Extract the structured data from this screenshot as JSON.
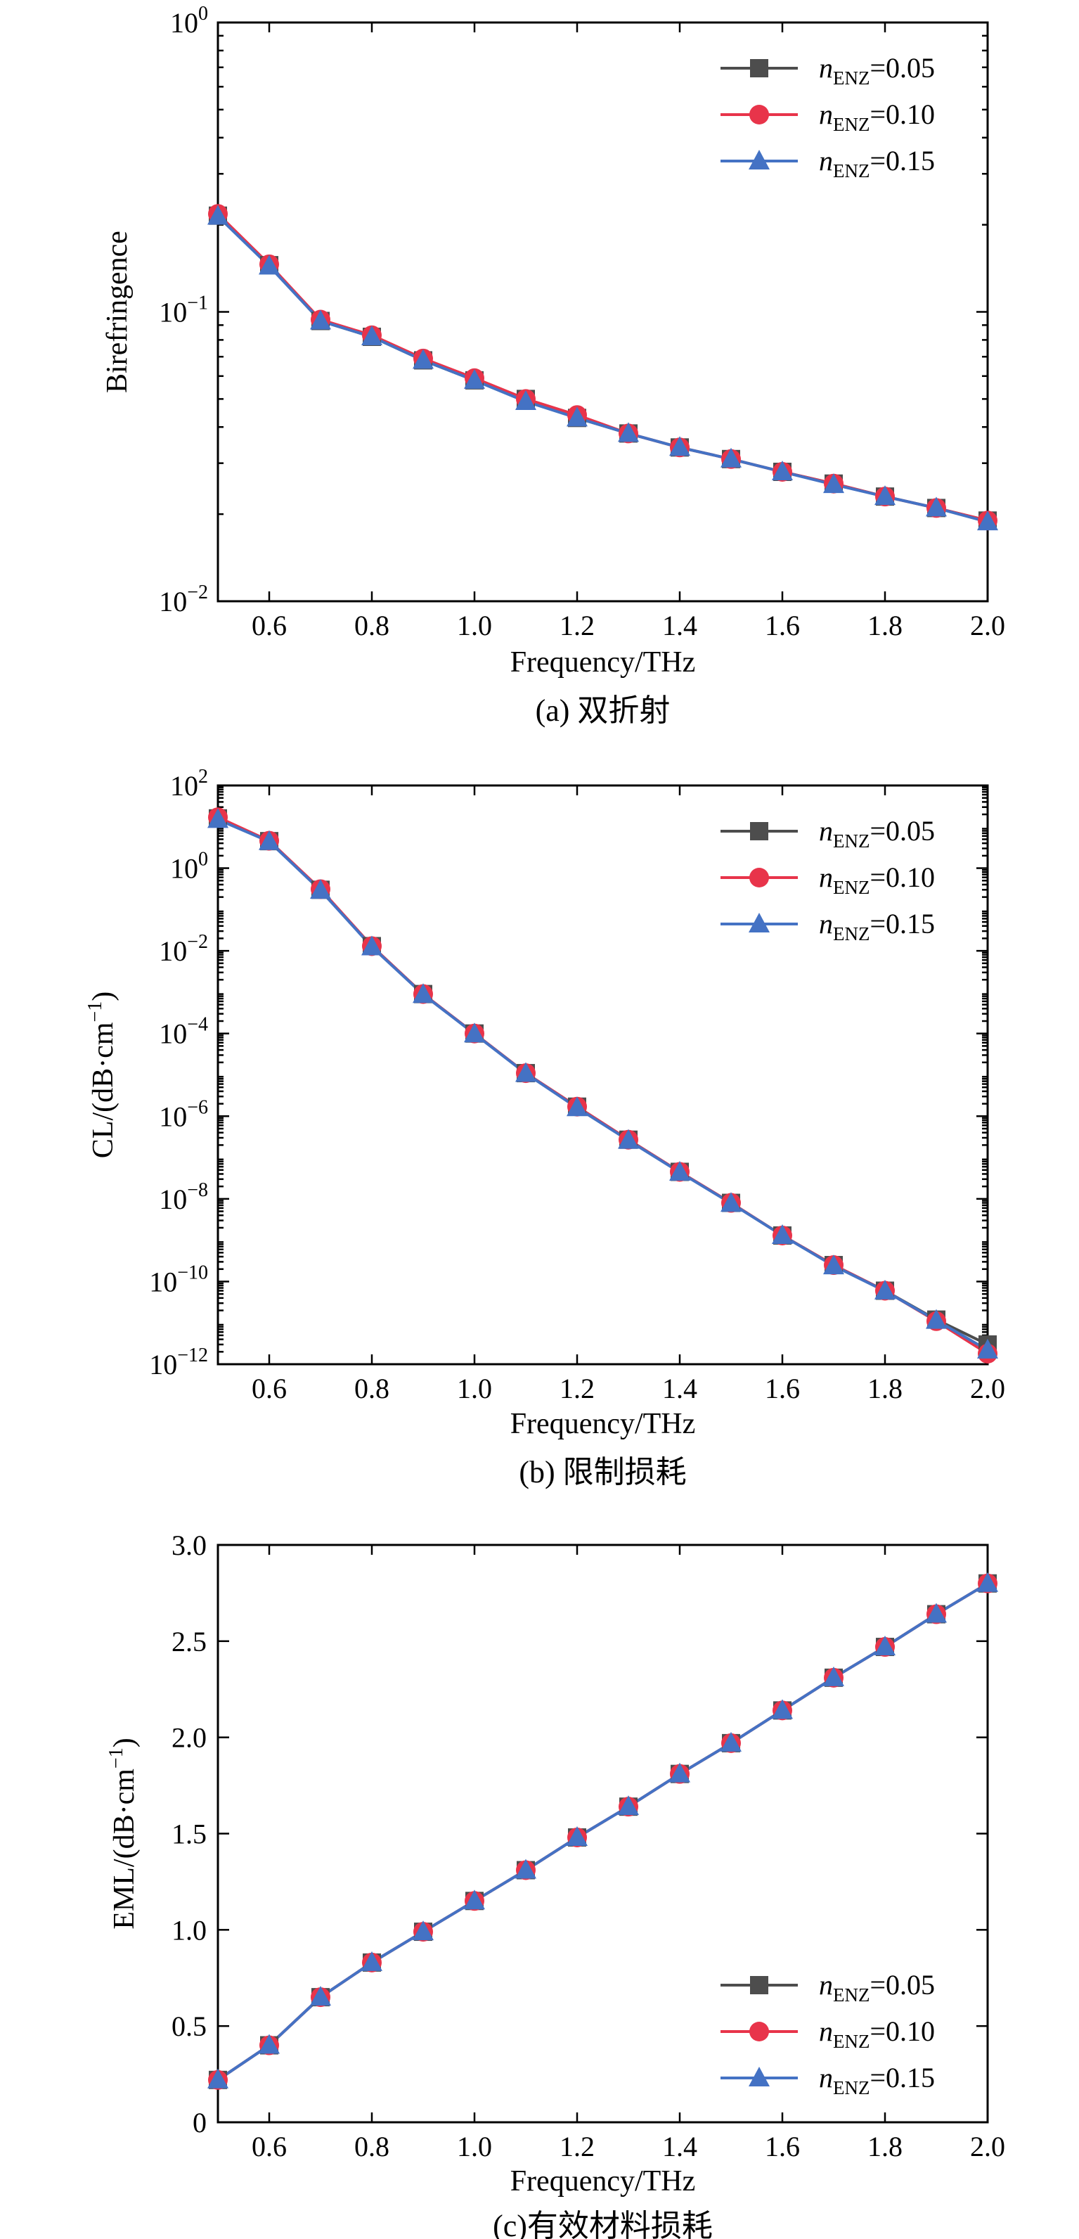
{
  "chart_data": [
    {
      "type": "line",
      "caption": "(a) 双折射",
      "xlabel": "Frequency/THz",
      "ylabel": "Birefringence",
      "xlim": [
        0.5,
        2.0
      ],
      "ylim": [
        0.01,
        1
      ],
      "yscale": "log",
      "xticks": [
        "0.6",
        "0.8",
        "1.0",
        "1.2",
        "1.4",
        "1.6",
        "1.8",
        "2.0"
      ],
      "yticks": [
        {
          "base": "10",
          "exp": "0"
        },
        {
          "base": "10",
          "exp": "−1"
        },
        {
          "base": "10",
          "exp": "−2"
        }
      ],
      "legend_position": "top-right",
      "x": [
        0.5,
        0.6,
        0.7,
        0.8,
        0.9,
        1.0,
        1.1,
        1.2,
        1.3,
        1.4,
        1.5,
        1.6,
        1.7,
        1.8,
        1.9,
        2.0
      ],
      "series": [
        {
          "name": "n",
          "sub": "ENZ",
          "suffix": "=0.05",
          "color": "#4d4d4d",
          "marker": "square",
          "values": [
            0.215,
            0.145,
            0.093,
            0.082,
            0.068,
            0.058,
            0.05,
            0.043,
            0.038,
            0.034,
            0.031,
            0.028,
            0.0255,
            0.023,
            0.021,
            0.019
          ]
        },
        {
          "name": "n",
          "sub": "ENZ",
          "suffix": "=0.10",
          "color": "#e8344a",
          "marker": "circle",
          "values": [
            0.218,
            0.146,
            0.094,
            0.083,
            0.069,
            0.059,
            0.05,
            0.044,
            0.038,
            0.034,
            0.031,
            0.028,
            0.0255,
            0.023,
            0.021,
            0.019
          ]
        },
        {
          "name": "n",
          "sub": "ENZ",
          "suffix": "=0.15",
          "color": "#4472c4",
          "marker": "triangle",
          "values": [
            0.214,
            0.144,
            0.093,
            0.082,
            0.068,
            0.058,
            0.049,
            0.043,
            0.038,
            0.034,
            0.031,
            0.028,
            0.0253,
            0.023,
            0.021,
            0.0188
          ]
        }
      ]
    },
    {
      "type": "line",
      "caption": "(b) 限制损耗",
      "xlabel": "Frequency/THz",
      "ylabel": "CL/(dB·cm",
      "ylabel_sup": "−1",
      "ylabel_tail": ")",
      "xlim": [
        0.5,
        2.0
      ],
      "ylim": [
        1e-12,
        100
      ],
      "yscale": "log",
      "xticks": [
        "0.6",
        "0.8",
        "1.0",
        "1.2",
        "1.4",
        "1.6",
        "1.8",
        "2.0"
      ],
      "yticks": [
        {
          "base": "10",
          "exp": "2"
        },
        {
          "base": "10",
          "exp": "0"
        },
        {
          "base": "10",
          "exp": "−2"
        },
        {
          "base": "10",
          "exp": "−4"
        },
        {
          "base": "10",
          "exp": "−6"
        },
        {
          "base": "10",
          "exp": "−8"
        },
        {
          "base": "10",
          "exp": "−10"
        },
        {
          "base": "10",
          "exp": "−12"
        }
      ],
      "legend_position": "top-right",
      "x": [
        0.5,
        0.6,
        0.7,
        0.8,
        0.9,
        1.0,
        1.1,
        1.2,
        1.3,
        1.4,
        1.5,
        1.6,
        1.7,
        1.8,
        1.9,
        2.0
      ],
      "series": [
        {
          "name": "n",
          "sub": "ENZ",
          "suffix": "=0.05",
          "color": "#4d4d4d",
          "marker": "square",
          "values": [
            16,
            4.5,
            0.3,
            0.013,
            0.0009,
            0.0001,
            1.1e-05,
            1.7e-06,
            2.7e-07,
            4.5e-08,
            8e-09,
            1.3e-09,
            2.5e-10,
            6e-11,
            1.2e-11,
            3e-12
          ]
        },
        {
          "name": "n",
          "sub": "ENZ",
          "suffix": "=0.10",
          "color": "#e8344a",
          "marker": "circle",
          "values": [
            17,
            4.6,
            0.31,
            0.013,
            0.0009,
            0.0001,
            1.1e-05,
            1.7e-06,
            2.7e-07,
            4.5e-08,
            8e-09,
            1.3e-09,
            2.5e-10,
            6e-11,
            1.1e-11,
            1.8e-12
          ]
        },
        {
          "name": "n",
          "sub": "ENZ",
          "suffix": "=0.15",
          "color": "#4472c4",
          "marker": "triangle",
          "values": [
            15,
            4.4,
            0.29,
            0.0125,
            0.00088,
            9.8e-05,
            1.08e-05,
            1.6e-06,
            2.6e-07,
            4.4e-08,
            7.8e-09,
            1.3e-09,
            2.4e-10,
            5.9e-11,
            1.15e-11,
            2.2e-12
          ]
        }
      ]
    },
    {
      "type": "line",
      "caption": "(c)有效材料损耗",
      "xlabel": "Frequency/THz",
      "ylabel": "EML/(dB·cm",
      "ylabel_sup": "−1",
      "ylabel_tail": ")",
      "xlim": [
        0.5,
        2.0
      ],
      "ylim": [
        0,
        3.0
      ],
      "yscale": "linear",
      "xticks": [
        "0.6",
        "0.8",
        "1.0",
        "1.2",
        "1.4",
        "1.6",
        "1.8",
        "2.0"
      ],
      "yticks": [
        "3.0",
        "2.5",
        "2.0",
        "1.5",
        "1.0",
        "0.5",
        "0"
      ],
      "legend_position": "bottom-right",
      "x": [
        0.5,
        0.6,
        0.7,
        0.8,
        0.9,
        1.0,
        1.1,
        1.2,
        1.3,
        1.4,
        1.5,
        1.6,
        1.7,
        1.8,
        1.9,
        2.0
      ],
      "series": [
        {
          "name": "n",
          "sub": "ENZ",
          "suffix": "=0.05",
          "color": "#4d4d4d",
          "marker": "square",
          "values": [
            0.22,
            0.4,
            0.65,
            0.83,
            0.99,
            1.15,
            1.31,
            1.48,
            1.64,
            1.81,
            1.97,
            2.14,
            2.31,
            2.47,
            2.64,
            2.8
          ]
        },
        {
          "name": "n",
          "sub": "ENZ",
          "suffix": "=0.10",
          "color": "#e8344a",
          "marker": "circle",
          "values": [
            0.22,
            0.4,
            0.65,
            0.83,
            0.99,
            1.15,
            1.31,
            1.48,
            1.64,
            1.81,
            1.97,
            2.14,
            2.31,
            2.47,
            2.64,
            2.8
          ]
        },
        {
          "name": "n",
          "sub": "ENZ",
          "suffix": "=0.15",
          "color": "#4472c4",
          "marker": "triangle",
          "values": [
            0.22,
            0.4,
            0.65,
            0.83,
            0.99,
            1.15,
            1.31,
            1.48,
            1.64,
            1.81,
            1.97,
            2.14,
            2.31,
            2.47,
            2.64,
            2.8
          ]
        }
      ]
    }
  ]
}
